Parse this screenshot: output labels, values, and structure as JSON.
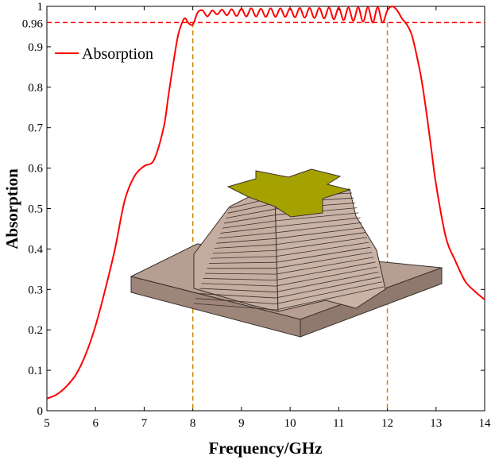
{
  "chart_data": {
    "type": "line",
    "title": "",
    "xlabel": "Frequency/GHz",
    "ylabel": "Absorption",
    "xlim": [
      5,
      14
    ],
    "ylim": [
      0,
      1
    ],
    "xticks": [
      5,
      6,
      7,
      8,
      9,
      10,
      11,
      12,
      13,
      14
    ],
    "yticks": [
      0,
      0.1,
      0.2,
      0.3,
      0.4,
      0.5,
      0.6,
      0.7,
      0.8,
      0.9,
      1
    ],
    "extra_ytick": "0.96",
    "grid": false,
    "legend": {
      "position": "top-left",
      "entries": [
        "Absorption"
      ]
    },
    "series": [
      {
        "name": "Absorption",
        "color": "#ff0000",
        "x": [
          5.0,
          5.2,
          5.4,
          5.6,
          5.8,
          6.0,
          6.2,
          6.4,
          6.6,
          6.8,
          7.0,
          7.2,
          7.4,
          7.5,
          7.6,
          7.7,
          7.8,
          7.85,
          7.9,
          8.0,
          8.1,
          8.2,
          8.3,
          8.4,
          8.5,
          8.6,
          8.7,
          8.8,
          8.9,
          9.0,
          9.1,
          9.2,
          9.3,
          9.4,
          9.5,
          9.6,
          9.7,
          9.8,
          9.9,
          10.0,
          10.1,
          10.2,
          10.3,
          10.4,
          10.5,
          10.6,
          10.7,
          10.8,
          10.9,
          11.0,
          11.1,
          11.2,
          11.3,
          11.4,
          11.5,
          11.6,
          11.7,
          11.8,
          11.9,
          12.0,
          12.1,
          12.2,
          12.3,
          12.4,
          12.5,
          12.6,
          12.7,
          12.8,
          12.9,
          13.0,
          13.2,
          13.4,
          13.6,
          13.8,
          14.0
        ],
        "y": [
          0.03,
          0.04,
          0.06,
          0.09,
          0.14,
          0.21,
          0.3,
          0.4,
          0.52,
          0.58,
          0.605,
          0.62,
          0.7,
          0.78,
          0.86,
          0.93,
          0.965,
          0.97,
          0.96,
          0.955,
          0.985,
          0.99,
          0.975,
          0.99,
          0.98,
          0.992,
          0.978,
          0.993,
          0.976,
          0.994,
          0.975,
          0.995,
          0.975,
          0.994,
          0.974,
          0.995,
          0.974,
          0.995,
          0.974,
          0.995,
          0.973,
          0.996,
          0.972,
          0.996,
          0.971,
          0.996,
          0.97,
          0.997,
          0.968,
          0.997,
          0.966,
          0.997,
          0.964,
          0.998,
          0.962,
          0.998,
          0.96,
          0.998,
          0.96,
          0.99,
          1.0,
          0.99,
          0.97,
          0.955,
          0.93,
          0.88,
          0.82,
          0.74,
          0.65,
          0.56,
          0.43,
          0.37,
          0.32,
          0.295,
          0.275
        ]
      }
    ],
    "reference_lines": [
      {
        "orientation": "horizontal",
        "value": 0.96,
        "color": "#ff0000",
        "style": "dashed"
      },
      {
        "orientation": "vertical",
        "value": 8,
        "color": "#cc8800",
        "style": "dashed"
      },
      {
        "orientation": "vertical",
        "value": 12,
        "color": "#cc8800",
        "style": "dashed"
      }
    ]
  },
  "inset": {
    "description_name": "absorber-unit-cell-illustration",
    "colors": {
      "top_patch": "#a5a200",
      "layers": "#c4ada0",
      "layer_lines": "#3b302b",
      "substrate_top": "#b69f92",
      "substrate_side": "#9d857a"
    }
  }
}
